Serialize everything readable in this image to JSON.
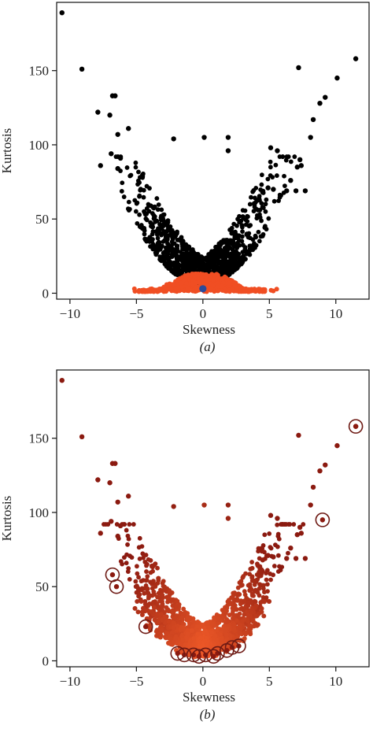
{
  "chart_data": [
    {
      "type": "scatter",
      "panel_label": "(a)",
      "xlabel": "Skewness",
      "ylabel": "Kurtosis",
      "xlim": [
        -11,
        12.5
      ],
      "ylim": [
        -4,
        196
      ],
      "xticks": [
        -10,
        -5,
        0,
        5,
        10
      ],
      "yticks": [
        0,
        50,
        100,
        150
      ],
      "colors": {
        "outer": "#000000",
        "inner": "#f04e23",
        "center": "#2c4a9a"
      },
      "center_point": {
        "x": 0,
        "y": 3
      },
      "series": [
        {
          "values_xy": [
            [
              -10.6,
              189
            ],
            [
              -9.1,
              151
            ],
            [
              -7.9,
              122
            ],
            [
              -6.8,
              133
            ],
            [
              -6.6,
              133
            ],
            [
              -7.0,
              120
            ],
            [
              -6.4,
              107
            ],
            [
              -5.6,
              111
            ],
            [
              -6.9,
              94
            ],
            [
              -6.2,
              91
            ],
            [
              -7.7,
              86
            ],
            [
              -6.4,
              84
            ],
            [
              -2.2,
              104
            ],
            [
              0.1,
              105
            ],
            [
              1.9,
              105
            ],
            [
              1.9,
              96
            ],
            [
              5.1,
              98
            ],
            [
              5.6,
              96
            ],
            [
              7.2,
              152
            ],
            [
              11.5,
              158
            ],
            [
              10.1,
              145
            ],
            [
              9.2,
              132
            ],
            [
              8.8,
              128
            ],
            [
              8.3,
              117
            ],
            [
              8.1,
              105
            ],
            [
              7.3,
              90
            ],
            [
              7.4,
              86
            ],
            [
              7.1,
              85
            ],
            [
              6.6,
              76
            ],
            [
              7.0,
              69
            ],
            [
              4.9,
              71
            ],
            [
              6.3,
              69
            ],
            [
              7.7,
              69
            ],
            [
              4.5,
              68
            ],
            [
              5.3,
              70
            ]
          ]
        }
      ]
    },
    {
      "type": "scatter",
      "panel_label": "(b)",
      "xlabel": "Skewness",
      "ylabel": "Kurtosis",
      "xlim": [
        -11,
        12.5
      ],
      "ylim": [
        -4,
        196
      ],
      "xticks": [
        -10,
        -5,
        0,
        5,
        10
      ],
      "yticks": [
        0,
        50,
        100,
        150
      ],
      "colors": {
        "far": "#8b1a10",
        "near": "#f05a28",
        "ring": "#6e1a14"
      },
      "highlighted": [
        [
          11.5,
          158
        ],
        [
          9.0,
          95
        ],
        [
          -6.8,
          58
        ],
        [
          -6.5,
          50
        ],
        [
          -4.3,
          23
        ],
        [
          2.7,
          10
        ],
        [
          2.2,
          9
        ],
        [
          1.8,
          7
        ],
        [
          1.1,
          5
        ],
        [
          0.2,
          4
        ],
        [
          -0.7,
          4
        ],
        [
          -1.4,
          4
        ],
        [
          -1.9,
          5
        ],
        [
          -0.3,
          3
        ],
        [
          0.8,
          3
        ]
      ]
    }
  ]
}
